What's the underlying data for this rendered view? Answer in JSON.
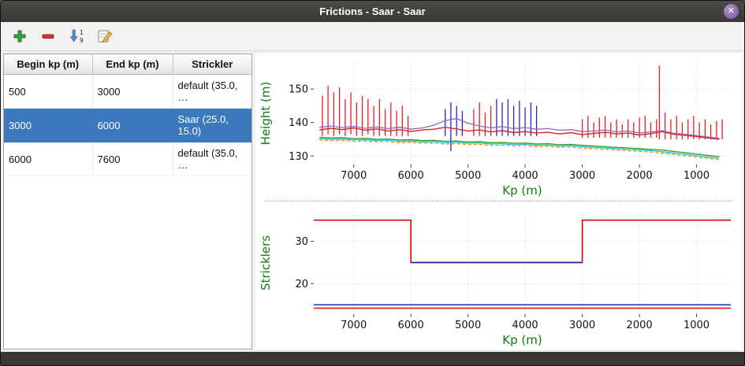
{
  "window": {
    "title": "Frictions - Saar - Saar",
    "close_icon": "✕"
  },
  "toolbar": {
    "buttons": [
      {
        "name": "add",
        "icon": "plus-icon"
      },
      {
        "name": "remove",
        "icon": "minus-icon"
      },
      {
        "name": "sort",
        "icon": "sort-1-9-icon"
      },
      {
        "name": "edit",
        "icon": "edit-icon"
      }
    ]
  },
  "table": {
    "columns": [
      "Begin kp (m)",
      "End kp (m)",
      "Strickler"
    ],
    "rows": [
      {
        "begin": "500",
        "end": "3000",
        "strickler": "default (35.0, …",
        "selected": false
      },
      {
        "begin": "3000",
        "end": "6000",
        "strickler": "Saar (25.0, 15.0)",
        "selected": true
      },
      {
        "begin": "6000",
        "end": "7600",
        "strickler": "default (35.0, …",
        "selected": false
      }
    ],
    "selected_color": "#3c78bc"
  },
  "chart_data": [
    {
      "type": "line",
      "name": "height-profile-chart",
      "xlabel": "Kp (m)",
      "ylabel": "Height (m)",
      "label_color": "#0e7d0e",
      "xlim": [
        7700,
        400
      ],
      "ylim": [
        127.5,
        158
      ],
      "x_ticks": [
        7000,
        6000,
        5000,
        4000,
        3000,
        2000,
        1000
      ],
      "y_ticks": [
        130,
        140,
        150
      ],
      "grid": true,
      "x": [
        7600,
        7400,
        7200,
        7000,
        6800,
        6600,
        6400,
        6200,
        6000,
        5800,
        5600,
        5400,
        5200,
        5000,
        4800,
        4600,
        4400,
        4200,
        4000,
        3800,
        3600,
        3400,
        3200,
        3000,
        2800,
        2600,
        2400,
        2200,
        2000,
        1800,
        1600,
        1400,
        1200,
        1000,
        800,
        600
      ],
      "series": [
        {
          "kind": "spikes",
          "label": "sections-left-bank",
          "color": "#e02020",
          "width": 1.3,
          "points": [
            [
              7550,
              136,
              148
            ],
            [
              7450,
              136.5,
              151
            ],
            [
              7350,
              136,
              149
            ],
            [
              7250,
              136.5,
              150.5
            ],
            [
              7150,
              136,
              147
            ],
            [
              7050,
              136.5,
              149
            ],
            [
              6950,
              136,
              146
            ],
            [
              6850,
              136,
              148
            ],
            [
              6750,
              136.5,
              147
            ],
            [
              6650,
              136,
              145
            ],
            [
              6550,
              136,
              147
            ],
            [
              6450,
              136,
              144
            ],
            [
              6350,
              136,
              146
            ],
            [
              6250,
              136,
              143.5
            ],
            [
              6150,
              136,
              145
            ],
            [
              6050,
              136,
              142
            ],
            [
              4900,
              136,
              144
            ],
            [
              4800,
              136,
              146
            ],
            [
              4700,
              136,
              143
            ],
            [
              4600,
              136,
              145
            ],
            [
              3000,
              135.5,
              141
            ],
            [
              2900,
              135.5,
              142
            ],
            [
              2800,
              135.5,
              140
            ],
            [
              2700,
              135.5,
              141.5
            ],
            [
              2600,
              135.5,
              142
            ],
            [
              2500,
              135.5,
              140
            ],
            [
              2400,
              135.5,
              141
            ],
            [
              2300,
              135.5,
              139.5
            ],
            [
              2200,
              135.5,
              141
            ],
            [
              2100,
              135.5,
              140
            ],
            [
              2000,
              135.5,
              141.5
            ],
            [
              1900,
              135.5,
              142
            ],
            [
              1800,
              135.5,
              140
            ],
            [
              1700,
              135.5,
              141
            ],
            [
              1650,
              135,
              157
            ],
            [
              1550,
              135,
              143
            ],
            [
              1450,
              135,
              141
            ],
            [
              1350,
              135,
              142
            ],
            [
              1250,
              135,
              140
            ],
            [
              1150,
              135,
              141
            ],
            [
              1050,
              135,
              142
            ],
            [
              950,
              135,
              140
            ],
            [
              850,
              135,
              141
            ],
            [
              750,
              135,
              139.5
            ],
            [
              650,
              135,
              140.5
            ],
            [
              550,
              135,
              141
            ]
          ]
        },
        {
          "kind": "spikes",
          "label": "sections-right-bank",
          "color": "#2828b8",
          "width": 1.3,
          "points": [
            [
              5400,
              136,
              144
            ],
            [
              5300,
              131.5,
              146
            ],
            [
              5200,
              136,
              145
            ],
            [
              5100,
              136,
              143.5
            ],
            [
              4500,
              136,
              147
            ],
            [
              4400,
              136,
              146
            ],
            [
              4300,
              136,
              147
            ],
            [
              4200,
              136,
              145
            ],
            [
              4100,
              136,
              146.5
            ],
            [
              4000,
              136,
              144.5
            ],
            [
              3900,
              136,
              146
            ],
            [
              3800,
              136,
              145
            ]
          ]
        },
        {
          "kind": "line",
          "label": "bed-level-dashed",
          "color": "#ff7f0e",
          "width": 1.2,
          "dash": "4 3",
          "y": [
            134.8,
            134.6,
            134.7,
            134.4,
            134.5,
            134.2,
            134.3,
            134.0,
            134.1,
            133.8,
            133.9,
            133.6,
            133.7,
            133.4,
            133.5,
            133.2,
            133.3,
            133.0,
            133.1,
            132.8,
            132.9,
            132.6,
            132.7,
            132.4,
            132.2,
            132.0,
            131.8,
            131.6,
            131.4,
            131.2,
            130.9,
            130.5,
            130.1,
            129.7,
            129.3,
            128.9
          ]
        },
        {
          "kind": "line",
          "label": "water-line-cyan",
          "color": "#17becf",
          "width": 1.2,
          "y": [
            135.2,
            135.0,
            135.1,
            134.8,
            134.9,
            134.6,
            134.7,
            134.4,
            134.5,
            134.2,
            134.3,
            134.0,
            134.1,
            133.8,
            133.9,
            133.6,
            133.7,
            133.4,
            133.5,
            133.2,
            133.3,
            133.0,
            133.1,
            132.8,
            132.6,
            132.4,
            132.2,
            132.0,
            131.8,
            131.6,
            131.3,
            130.9,
            130.5,
            130.1,
            129.7,
            129.3
          ]
        },
        {
          "kind": "line",
          "label": "thalweg-green",
          "color": "#2ca02c",
          "width": 1.4,
          "y": [
            135.6,
            135.4,
            135.5,
            135.2,
            135.3,
            135.0,
            135.1,
            134.8,
            134.9,
            134.6,
            134.7,
            134.4,
            134.5,
            134.2,
            134.3,
            134.0,
            134.1,
            133.8,
            133.9,
            133.6,
            133.7,
            133.4,
            133.5,
            133.2,
            133.0,
            132.8,
            132.6,
            132.4,
            132.2,
            132.0,
            131.8,
            131.4,
            131.0,
            130.6,
            130.2,
            129.8
          ]
        },
        {
          "kind": "line",
          "label": "bank-line-purple",
          "color": "#9467bd",
          "width": 1.3,
          "y": [
            138.6,
            139.0,
            138.5,
            138.9,
            138.3,
            138.7,
            138.2,
            138.6,
            138.0,
            138.4,
            139.2,
            140.6,
            141.2,
            139.8,
            139.0,
            138.4,
            138.8,
            138.2,
            138.5,
            138.0,
            138.2,
            137.7,
            137.9,
            137.3,
            137.5,
            137.8,
            137.2,
            137.5,
            136.9,
            137.2,
            137.6,
            136.8,
            136.5,
            136.1,
            135.7,
            135.3
          ]
        },
        {
          "kind": "line",
          "label": "bank-line-red",
          "color": "#d62728",
          "width": 1.4,
          "y": [
            137.8,
            138.3,
            137.9,
            138.4,
            137.7,
            138.1,
            137.5,
            137.9,
            137.3,
            137.8,
            138.0,
            138.6,
            138.1,
            137.5,
            137.8,
            137.2,
            137.6,
            137.0,
            137.3,
            136.9,
            137.1,
            136.6,
            137.0,
            136.4,
            136.8,
            137.1,
            136.6,
            136.9,
            136.3,
            136.7,
            137.3,
            136.5,
            136.2,
            135.8,
            135.4,
            135.0
          ]
        }
      ]
    },
    {
      "type": "line",
      "name": "stricklers-chart",
      "xlabel": "Kp (m)",
      "ylabel": "Stricklers",
      "label_color": "#0e7d0e",
      "xlim": [
        7700,
        400
      ],
      "ylim": [
        12.8,
        37
      ],
      "x_ticks": [
        7000,
        6000,
        5000,
        4000,
        3000,
        2000,
        1000
      ],
      "y_ticks": [
        20,
        30
      ],
      "grid": true,
      "series": [
        {
          "kind": "line",
          "label": "strickler-major-step",
          "color": "#e00000",
          "width": 1.6,
          "x": [
            7700,
            6000,
            6000,
            3000,
            3000,
            400
          ],
          "y": [
            35,
            35,
            25,
            25,
            35,
            35
          ]
        },
        {
          "kind": "line",
          "label": "selected-segment-major",
          "color": "#2a2ab0",
          "width": 1.7,
          "x": [
            6000,
            3000
          ],
          "y": [
            25,
            25
          ]
        },
        {
          "kind": "line",
          "label": "strickler-minor-red",
          "color": "#e00000",
          "width": 1.4,
          "x": [
            7700,
            400
          ],
          "y": [
            14.2,
            14.2
          ]
        },
        {
          "kind": "line",
          "label": "strickler-minor-blue",
          "color": "#2a2ab0",
          "width": 1.5,
          "x": [
            7700,
            400
          ],
          "y": [
            15,
            15
          ]
        }
      ]
    }
  ]
}
